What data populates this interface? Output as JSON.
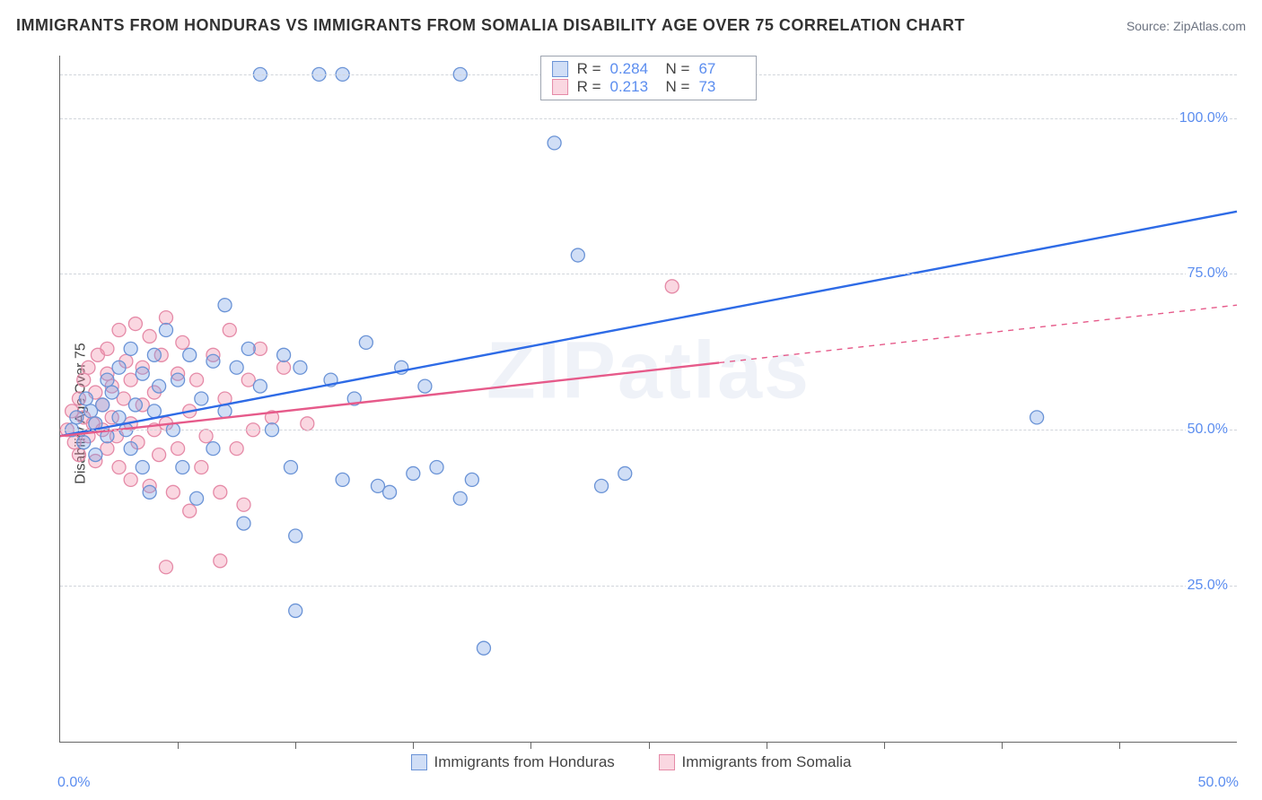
{
  "header": {
    "title": "IMMIGRANTS FROM HONDURAS VS IMMIGRANTS FROM SOMALIA DISABILITY AGE OVER 75 CORRELATION CHART",
    "source_prefix": "Source: ",
    "source_name": "ZipAtlas.com"
  },
  "watermark": "ZIPatlas",
  "chart": {
    "type": "scatter",
    "y_axis_label": "Disability Age Over 75",
    "xlim": [
      0,
      50
    ],
    "ylim": [
      0,
      110
    ],
    "x_ticks_minor": [
      5,
      10,
      15,
      20,
      25,
      30,
      35,
      40,
      45
    ],
    "x_tick_labels": [
      {
        "v": 0,
        "label": "0.0%"
      },
      {
        "v": 50,
        "label": "50.0%"
      }
    ],
    "y_gridlines": [
      25,
      50,
      75,
      100,
      107
    ],
    "y_tick_labels": [
      {
        "v": 25,
        "label": "25.0%"
      },
      {
        "v": 50,
        "label": "50.0%"
      },
      {
        "v": 75,
        "label": "75.0%"
      },
      {
        "v": 100,
        "label": "100.0%"
      }
    ],
    "background_color": "#ffffff",
    "grid_color": "#d1d5db",
    "axis_text_color": "#5b8def",
    "marker_radius": 7.5,
    "marker_stroke_width": 1.3,
    "trend_line_width": 2.4,
    "series": [
      {
        "key": "honduras",
        "label": "Immigrants from Honduras",
        "fill": "rgba(120,160,230,0.35)",
        "stroke": "#6a93d6",
        "line_color": "#2e6be6",
        "R": "0.284",
        "N": "67",
        "trend": {
          "x1": 0,
          "y1": 49,
          "x2": 50,
          "y2": 85
        },
        "dash_from_x": null,
        "points": [
          [
            0.5,
            50
          ],
          [
            0.7,
            52
          ],
          [
            1.0,
            48
          ],
          [
            1.1,
            55
          ],
          [
            1.3,
            53
          ],
          [
            1.5,
            51
          ],
          [
            1.5,
            46
          ],
          [
            1.8,
            54
          ],
          [
            2.0,
            58
          ],
          [
            2.0,
            49
          ],
          [
            2.2,
            56
          ],
          [
            2.5,
            52
          ],
          [
            2.5,
            60
          ],
          [
            2.8,
            50
          ],
          [
            3.0,
            47
          ],
          [
            3.0,
            63
          ],
          [
            3.2,
            54
          ],
          [
            3.5,
            59
          ],
          [
            3.5,
            44
          ],
          [
            3.8,
            40
          ],
          [
            4.0,
            62
          ],
          [
            4.0,
            53
          ],
          [
            4.2,
            57
          ],
          [
            4.5,
            66
          ],
          [
            4.8,
            50
          ],
          [
            5.0,
            58
          ],
          [
            5.2,
            44
          ],
          [
            5.5,
            62
          ],
          [
            5.8,
            39
          ],
          [
            6.0,
            55
          ],
          [
            6.5,
            61
          ],
          [
            6.5,
            47
          ],
          [
            7.0,
            70
          ],
          [
            7.0,
            53
          ],
          [
            7.5,
            60
          ],
          [
            7.8,
            35
          ],
          [
            8.0,
            63
          ],
          [
            8.5,
            57
          ],
          [
            8.5,
            107
          ],
          [
            9.0,
            50
          ],
          [
            9.5,
            62
          ],
          [
            9.8,
            44
          ],
          [
            10.0,
            33
          ],
          [
            10.2,
            60
          ],
          [
            11.0,
            107
          ],
          [
            11.5,
            58
          ],
          [
            12.0,
            107
          ],
          [
            12.0,
            42
          ],
          [
            12.5,
            55
          ],
          [
            13.0,
            64
          ],
          [
            13.5,
            41
          ],
          [
            14.0,
            40
          ],
          [
            14.5,
            60
          ],
          [
            15.0,
            43
          ],
          [
            15.5,
            57
          ],
          [
            16.0,
            44
          ],
          [
            17.0,
            39
          ],
          [
            17.0,
            107
          ],
          [
            21.0,
            96
          ],
          [
            22.0,
            78
          ],
          [
            23.0,
            41
          ],
          [
            23.5,
            107
          ],
          [
            24.0,
            43
          ],
          [
            25.0,
            107
          ],
          [
            28.0,
            107
          ],
          [
            41.5,
            52
          ],
          [
            10.0,
            21
          ],
          [
            18.0,
            15
          ],
          [
            17.5,
            42
          ]
        ]
      },
      {
        "key": "somalia",
        "label": "Immigrants from Somalia",
        "fill": "rgba(240,140,170,0.35)",
        "stroke": "#e58aa7",
        "line_color": "#e65a8a",
        "R": "0.213",
        "N": "73",
        "trend": {
          "x1": 0,
          "y1": 49,
          "x2": 50,
          "y2": 70
        },
        "dash_from_x": 28,
        "points": [
          [
            0.3,
            50
          ],
          [
            0.5,
            53
          ],
          [
            0.6,
            48
          ],
          [
            0.8,
            55
          ],
          [
            0.8,
            46
          ],
          [
            1.0,
            52
          ],
          [
            1.0,
            58
          ],
          [
            1.2,
            49
          ],
          [
            1.2,
            60
          ],
          [
            1.4,
            51
          ],
          [
            1.5,
            56
          ],
          [
            1.5,
            45
          ],
          [
            1.6,
            62
          ],
          [
            1.8,
            50
          ],
          [
            1.8,
            54
          ],
          [
            2.0,
            59
          ],
          [
            2.0,
            47
          ],
          [
            2.0,
            63
          ],
          [
            2.2,
            52
          ],
          [
            2.2,
            57
          ],
          [
            2.4,
            49
          ],
          [
            2.5,
            66
          ],
          [
            2.5,
            44
          ],
          [
            2.7,
            55
          ],
          [
            2.8,
            61
          ],
          [
            3.0,
            51
          ],
          [
            3.0,
            58
          ],
          [
            3.0,
            42
          ],
          [
            3.2,
            67
          ],
          [
            3.3,
            48
          ],
          [
            3.5,
            54
          ],
          [
            3.5,
            60
          ],
          [
            3.8,
            41
          ],
          [
            3.8,
            65
          ],
          [
            4.0,
            50
          ],
          [
            4.0,
            56
          ],
          [
            4.2,
            46
          ],
          [
            4.3,
            62
          ],
          [
            4.5,
            68
          ],
          [
            4.5,
            51
          ],
          [
            4.8,
            40
          ],
          [
            5.0,
            59
          ],
          [
            5.0,
            47
          ],
          [
            5.2,
            64
          ],
          [
            5.5,
            53
          ],
          [
            5.5,
            37
          ],
          [
            5.8,
            58
          ],
          [
            6.0,
            44
          ],
          [
            6.2,
            49
          ],
          [
            6.5,
            62
          ],
          [
            6.8,
            40
          ],
          [
            7.0,
            55
          ],
          [
            7.2,
            66
          ],
          [
            7.5,
            47
          ],
          [
            7.8,
            38
          ],
          [
            8.0,
            58
          ],
          [
            8.2,
            50
          ],
          [
            8.5,
            63
          ],
          [
            4.5,
            28
          ],
          [
            6.8,
            29
          ],
          [
            9.0,
            52
          ],
          [
            9.5,
            60
          ],
          [
            10.5,
            51
          ],
          [
            26.0,
            73
          ]
        ]
      }
    ],
    "legend_top": {
      "r_label": "R =",
      "n_label": "N ="
    },
    "legend_bottom_swatch_size": 18
  }
}
